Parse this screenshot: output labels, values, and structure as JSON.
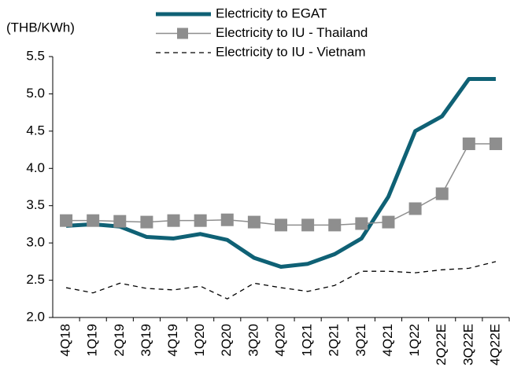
{
  "chart_data": {
    "type": "line",
    "y_axis_label": "(THB/KWh)",
    "categories": [
      "4Q18",
      "1Q19",
      "2Q19",
      "3Q19",
      "4Q19",
      "1Q20",
      "2Q20",
      "3Q20",
      "4Q20",
      "1Q21",
      "2Q21",
      "3Q21",
      "4Q21",
      "1Q22",
      "2Q22E",
      "3Q22E",
      "4Q22E"
    ],
    "series": [
      {
        "name": "Electricity to EGAT",
        "color": "#0f6175",
        "width": 5,
        "dash": "solid",
        "marker": "none",
        "values": [
          3.23,
          3.25,
          3.22,
          3.08,
          3.06,
          3.12,
          3.04,
          2.8,
          2.68,
          2.72,
          2.85,
          3.06,
          3.62,
          4.5,
          4.7,
          5.2,
          5.2
        ]
      },
      {
        "name": "Electricity to IU - Thailand",
        "color": "#8e8e8e",
        "width": 1.5,
        "dash": "solid",
        "marker": "square",
        "values": [
          3.3,
          3.3,
          3.29,
          3.28,
          3.3,
          3.3,
          3.31,
          3.28,
          3.24,
          3.24,
          3.24,
          3.26,
          3.28,
          3.46,
          3.66,
          4.33,
          4.33
        ]
      },
      {
        "name": "Electricity to IU - Vietnam",
        "color": "#000000",
        "width": 1.3,
        "dash": "dashed",
        "marker": "none",
        "values": [
          2.4,
          2.33,
          2.46,
          2.39,
          2.37,
          2.42,
          2.25,
          2.46,
          2.4,
          2.35,
          2.43,
          2.62,
          2.62,
          2.6,
          2.64,
          2.66,
          2.75
        ]
      }
    ],
    "ylim": [
      2.0,
      5.5
    ],
    "yticks": [
      {
        "value": 2,
        "label": "2.0"
      },
      2.5,
      {
        "value": 3,
        "label": "3.0"
      },
      3.5,
      {
        "value": 4,
        "label": "4.0"
      },
      4.5,
      {
        "value": 5,
        "label": "5.0"
      },
      5.5
    ],
    "grid": false,
    "legend": "top"
  }
}
